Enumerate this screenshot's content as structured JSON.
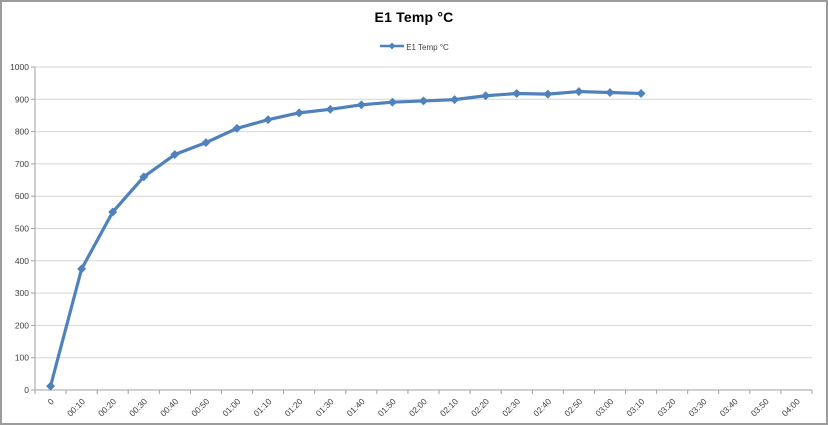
{
  "window": {
    "background": "#ffffff",
    "border_color": "#9c9c9c"
  },
  "chart_data": {
    "type": "line",
    "title": "E1 Temp °C",
    "legend": {
      "position": "top",
      "entries": [
        "E1 Temp °C"
      ]
    },
    "categories": [
      "0",
      "00:10",
      "00:20",
      "00:30",
      "00:40",
      "00:50",
      "01:00",
      "01:10",
      "01:20",
      "01:30",
      "01:40",
      "01:50",
      "02:00",
      "02:10",
      "02:20",
      "02:30",
      "02:40",
      "02:50",
      "03:00",
      "03:10",
      "03:20",
      "03:30",
      "03:40",
      "03:50",
      "04:00"
    ],
    "series": [
      {
        "name": "E1 Temp °C",
        "color": "#4F81BD",
        "marker": "diamond",
        "values": [
          12,
          375,
          551,
          660,
          729,
          766,
          810,
          837,
          858,
          869,
          883,
          891,
          895,
          899,
          911,
          918,
          916,
          924,
          921,
          918
        ]
      }
    ],
    "ylim": [
      0,
      1000
    ],
    "y_tick_step": 100,
    "y_tick_labels": [
      "0",
      "100",
      "200",
      "300",
      "400",
      "500",
      "600",
      "700",
      "800",
      "900",
      "1000"
    ],
    "x_label_rotation": -45,
    "grid": "horizontal-on",
    "gridline_color": "#d6d6d6",
    "axis_color": "#a0a0a0",
    "tick_label_color": "#404040"
  }
}
